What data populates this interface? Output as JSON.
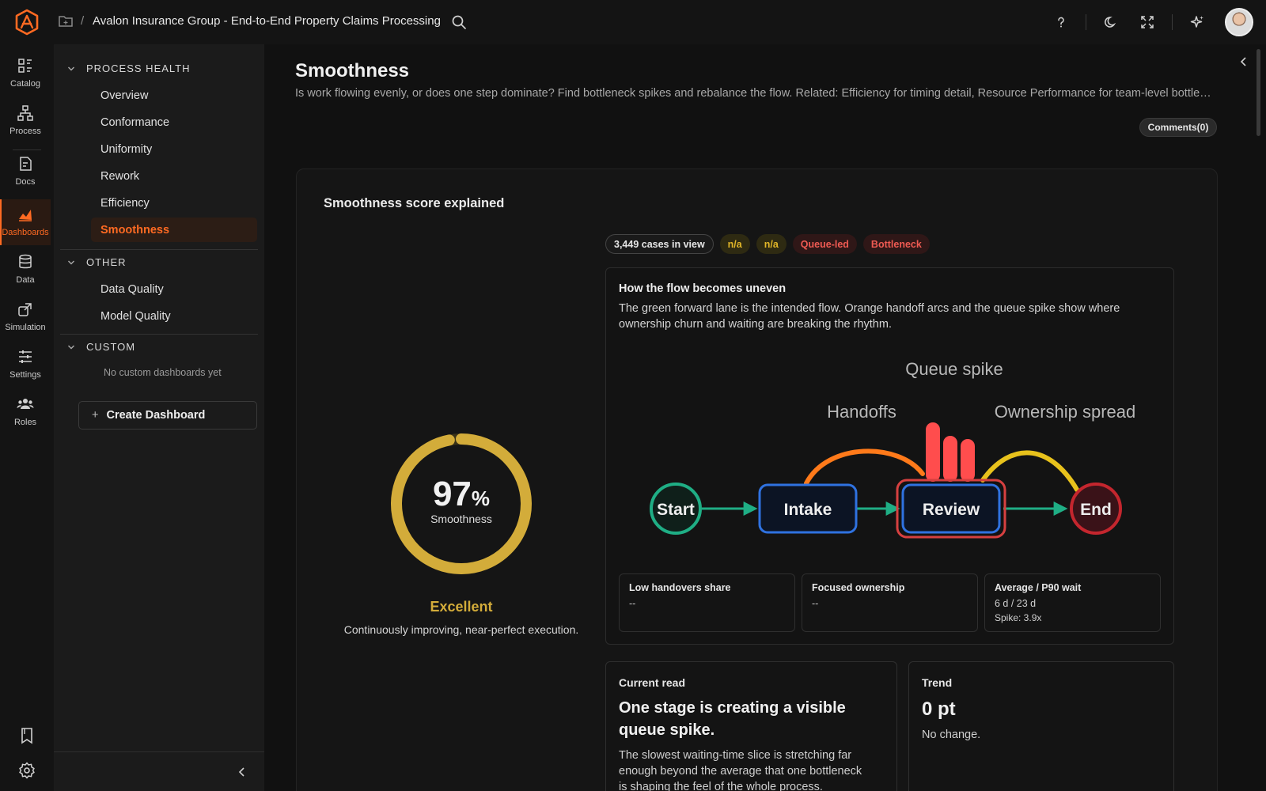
{
  "header": {
    "app_title": "Avalon Insurance Group - End-to-End Property Claims Processing",
    "separator": "/"
  },
  "rail": {
    "items": [
      {
        "label": "Catalog",
        "icon": "catalog-icon"
      },
      {
        "label": "Process",
        "icon": "process-icon"
      },
      {
        "label": "Docs",
        "icon": "docs-icon"
      },
      {
        "label": "Dashboards",
        "icon": "dashboards-icon",
        "active": true
      },
      {
        "label": "Data",
        "icon": "data-icon"
      },
      {
        "label": "Simulation",
        "icon": "simulation-icon"
      },
      {
        "label": "Settings",
        "icon": "settings-icon"
      },
      {
        "label": "Roles",
        "icon": "roles-icon"
      }
    ]
  },
  "sidebar": {
    "sections": [
      {
        "label": "PROCESS HEALTH",
        "items": [
          "Overview",
          "Conformance",
          "Uniformity",
          "Rework",
          "Efficiency",
          "Smoothness"
        ]
      },
      {
        "label": "OTHER",
        "items": [
          "Data Quality",
          "Model Quality"
        ]
      },
      {
        "label": "CUSTOM",
        "empty": "No custom dashboards yet"
      }
    ],
    "active_item": "Smoothness",
    "create_label": "Create Dashboard",
    "create_icon": "+"
  },
  "page": {
    "title": "Smoothness",
    "subtitle": "Is work flowing evenly, or does one step dominate? Find bottleneck spikes and rebalance the flow. Related: Efficiency for timing detail, Resource Performance for team-level bottlene...",
    "comments_label": "Comments(0)"
  },
  "score_card": {
    "title": "Smoothness score explained",
    "gauge": {
      "value": "97",
      "unit": "%",
      "label": "Smoothness",
      "fraction": 0.97,
      "color": "#d3ac3a"
    },
    "grade": "Excellent",
    "grade_desc": "Continuously improving, near-perfect execution.",
    "chips": [
      {
        "label": "3,449 cases in view",
        "style": "neutral"
      },
      {
        "label": "n/a",
        "style": "yellow"
      },
      {
        "label": "n/a",
        "style": "yellow"
      },
      {
        "label": "Queue-led",
        "style": "red"
      },
      {
        "label": "Bottleneck",
        "style": "red"
      }
    ],
    "flow": {
      "title": "How the flow becomes uneven",
      "description": "The green forward lane is the intended flow. Orange handoff arcs and the queue spike show where ownership churn and waiting are breaking the rhythm.",
      "labels": {
        "queue_spike": "Queue spike",
        "handoffs": "Handoffs",
        "ownership_spread": "Ownership spread"
      },
      "nodes": {
        "start": "Start",
        "intake": "Intake",
        "review": "Review",
        "end": "End"
      },
      "colors": {
        "forward": "#1fae85",
        "handoff": "#ff7a1a",
        "ownership": "#e8c21c",
        "spike": "#ff4d4d",
        "node": "#2f72e0"
      }
    },
    "metrics": [
      {
        "label": "Low handovers share",
        "value": "--"
      },
      {
        "label": "Focused ownership",
        "value": "--"
      },
      {
        "label": "Average / P90 wait",
        "value": "6 d / 23 d",
        "sub": "Spike: 3.9x"
      }
    ],
    "current_read": {
      "label": "Current read",
      "headline": "One stage is creating a visible queue spike.",
      "body": "The slowest waiting-time slice is stretching far enough beyond the average that one bottleneck is shaping the feel of the whole process."
    },
    "trend": {
      "label": "Trend",
      "value": "0 pt",
      "desc": "No change."
    }
  }
}
